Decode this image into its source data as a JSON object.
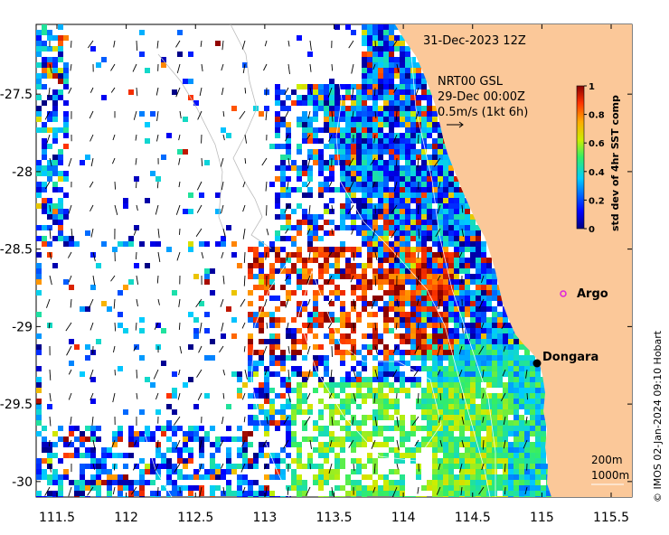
{
  "map": {
    "datetime": "31-Dec-2023 12Z",
    "current_source": "NRT00 GSL",
    "current_time": "29-Dec 00:00Z",
    "current_scale": "0.5m/s (1kt 6h)",
    "lon_range": [
      111.35,
      115.65
    ],
    "lat_range": [
      -30.1,
      -27.05
    ],
    "x_ticks": [
      "111.5",
      "112",
      "112.5",
      "113",
      "113.5",
      "114",
      "114.5",
      "115",
      "115.5"
    ],
    "y_ticks": [
      "-27.5",
      "-28",
      "-28.5",
      "-29",
      "-29.5",
      "-30"
    ],
    "colorbar": {
      "label": "std dev of 4hr SST comp",
      "ticks": [
        "0",
        "0.2",
        "0.4",
        "0.6",
        "0.8",
        "1"
      ],
      "min": 0,
      "max": 1
    },
    "contours": [
      "200m",
      "1000m"
    ],
    "places": [
      {
        "name": "Dongara",
        "lon": 114.93,
        "lat": -29.25
      },
      {
        "name": "Argo",
        "lon": 115.12,
        "lat": -28.84
      }
    ],
    "credit": "© IMOS 02-Jan-2024 09:10 Hobart",
    "colors": {
      "land": "#fbc899",
      "place_marker": "#000000",
      "argo_marker": "#dd22dd"
    }
  }
}
